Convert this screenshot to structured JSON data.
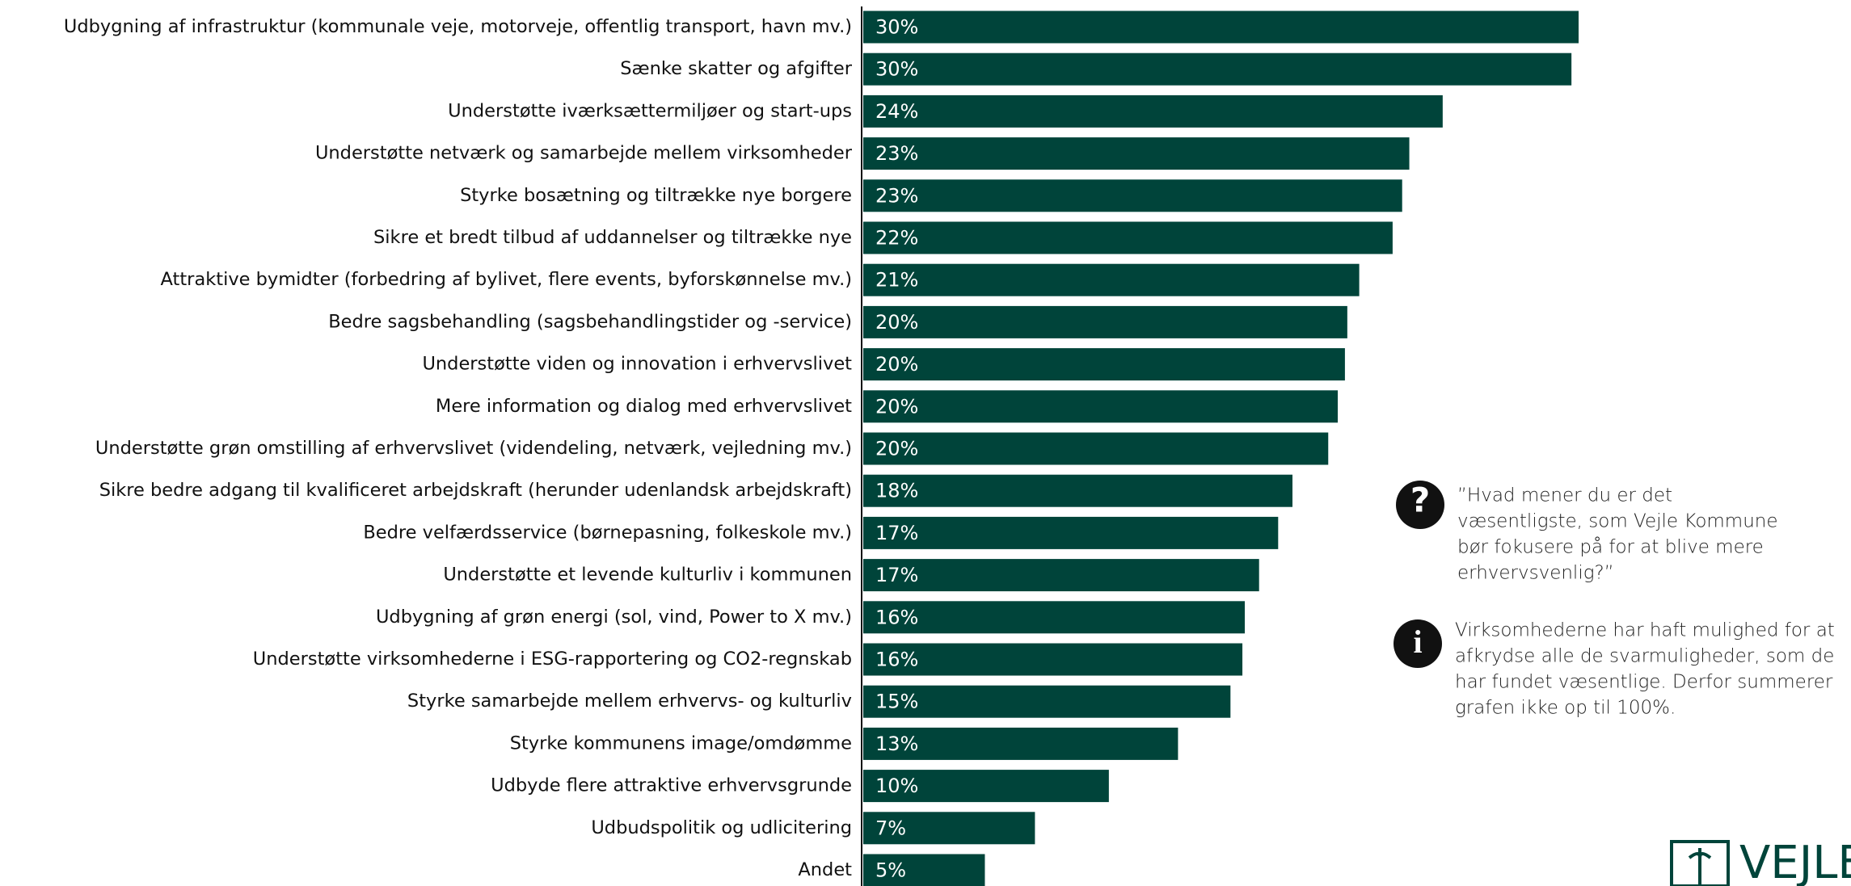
{
  "chart_data": {
    "type": "barh",
    "categories": [
      "Udbygning af infrastruktur (kommunale veje, motorveje, offentlig transport, havn mv.)",
      "Sænke skatter og afgifter",
      "Understøtte iværksættermiljøer og start-ups",
      "Understøtte netværk og samarbejde mellem virksomheder",
      "Styrke bosætning og tiltrække nye borgere",
      "Sikre et bredt tilbud af uddannelser og tiltrække nye",
      "Attraktive bymidter (forbedring af bylivet, flere events, byforskønnelse mv.)",
      "Bedre sagsbehandling (sagsbehandlingstider og -service)",
      "Understøtte viden og innovation i erhvervslivet",
      "Mere information og dialog med erhvervslivet",
      "Understøtte grøn omstilling af erhvervslivet (videndeling, netværk, vejledning mv.)",
      "Sikre bedre adgang til kvalificeret arbejdskraft (herunder udenlandsk arbejdskraft)",
      "Bedre velfærdsservice (børnepasning, folkeskole mv.)",
      "Understøtte et levende kulturliv i kommunen",
      "Udbygning af grøn energi (sol, vind, Power to X mv.)",
      "Understøtte virksomhederne i ESG-rapportering og CO2-regnskab",
      "Styrke samarbejde mellem erhvervs- og kulturliv",
      "Styrke kommunens image/omdømme",
      "Udbyde flere attraktive erhvervsgrunde",
      "Udbudspolitik og udlicitering",
      "Andet"
    ],
    "values": [
      30.0,
      29.7,
      24.3,
      22.9,
      22.6,
      22.2,
      20.8,
      20.3,
      20.2,
      19.9,
      19.5,
      18.0,
      17.4,
      16.6,
      16.0,
      15.9,
      15.4,
      13.2,
      10.3,
      7.2,
      5.1
    ],
    "value_labels": [
      "30%",
      "30%",
      "24%",
      "23%",
      "23%",
      "22%",
      "21%",
      "20%",
      "20%",
      "20%",
      "20%",
      "18%",
      "17%",
      "17%",
      "16%",
      "16%",
      "15%",
      "13%",
      "10%",
      "7%",
      "5%"
    ],
    "color": "#00443a",
    "question": [
      "”Hvad mener du er det",
      "væsentligste, som Vejle Kommune",
      "bør fokusere på for at blive mere",
      "erhvervsvenlig?”"
    ],
    "note": [
      "Virksomhederne har haft mulighed for at",
      "afkrydse alle de svarmuligheder, som de",
      "har fundet væsentlige. Derfor summerer",
      "grafen ikke op til 100%."
    ],
    "logo": "VEJLE"
  }
}
